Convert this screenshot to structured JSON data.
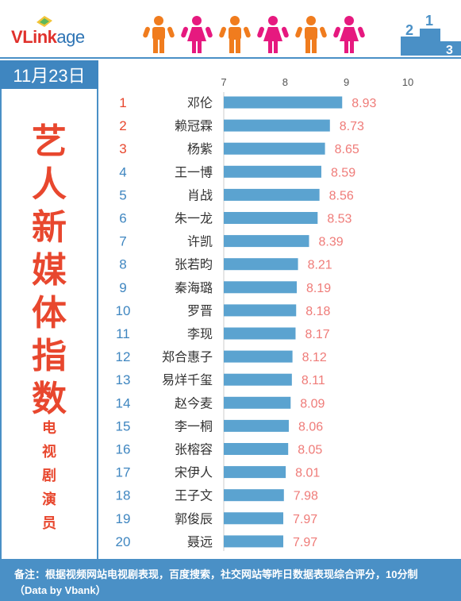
{
  "brand": {
    "v": "V",
    "link": "Link",
    "age": "age"
  },
  "date": "11月23日",
  "title_chars": [
    "艺",
    "人",
    "新",
    "媒",
    "体",
    "指",
    "数"
  ],
  "title_star": "*",
  "subtitle_chars": [
    "电",
    "视",
    "剧",
    "演",
    "员"
  ],
  "footer": {
    "line1": "备注：根据视频网站电视剧表现，百度搜索，社交网站等昨日数据表现综合评分，10分制",
    "line2": "（Data by Vbank）"
  },
  "podium_labels": [
    "2",
    "1",
    "3"
  ],
  "colors": {
    "bar": "#5ba3d0",
    "rank_top": "#e8472e",
    "rank_other": "#3f86c0",
    "value": "#ef7b78",
    "accent": "#4a90c6",
    "person_m": "#f07c1e",
    "person_f": "#e6197f"
  },
  "chart_data": {
    "type": "bar",
    "orientation": "horizontal",
    "xlim": [
      7,
      10
    ],
    "ticks": [
      7,
      8,
      9,
      10
    ],
    "grid": false,
    "categories": [
      "邓伦",
      "赖冠霖",
      "杨紫",
      "王一博",
      "肖战",
      "朱一龙",
      "许凯",
      "张若昀",
      "秦海璐",
      "罗晋",
      "李现",
      "郑合惠子",
      "易烊千玺",
      "赵今麦",
      "李一桐",
      "张榕容",
      "宋伊人",
      "王子文",
      "郭俊辰",
      "聂远"
    ],
    "ranks": [
      "1",
      "2",
      "3",
      "4",
      "5",
      "6",
      "7",
      "8",
      "9",
      "10",
      "11",
      "12",
      "13",
      "14",
      "15",
      "16",
      "17",
      "18",
      "19",
      "20"
    ],
    "values": [
      8.93,
      8.73,
      8.65,
      8.59,
      8.56,
      8.53,
      8.39,
      8.21,
      8.19,
      8.18,
      8.17,
      8.12,
      8.11,
      8.09,
      8.06,
      8.05,
      8.01,
      7.98,
      7.97,
      7.97
    ]
  }
}
